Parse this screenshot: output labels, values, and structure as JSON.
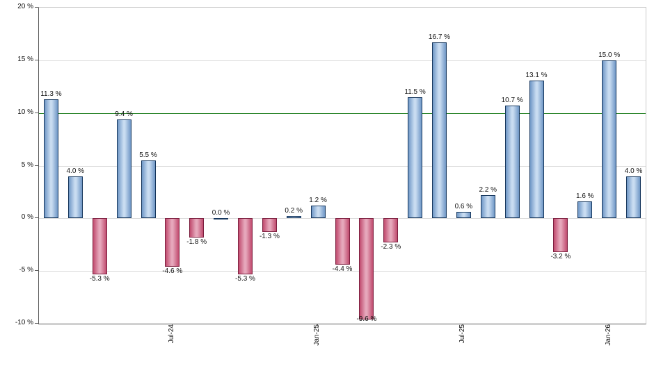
{
  "chart_data": {
    "type": "bar",
    "title": "",
    "xlabel": "",
    "ylabel": "",
    "ylim": [
      -10,
      20
    ],
    "grid": true,
    "legend": null,
    "yticks": [
      20,
      15,
      10,
      5,
      0,
      -5,
      -10
    ],
    "ytick_labels": [
      "20 %",
      "15 %",
      "10 %",
      "5 %",
      "0 %",
      "-5 %",
      "-10 %"
    ],
    "reference_line": {
      "value": 10,
      "color": "#1e7e1e"
    },
    "x_axis_labels": [
      {
        "label": "Jul-24",
        "index": 5
      },
      {
        "label": "Jan-25",
        "index": 11
      },
      {
        "label": "Jul-25",
        "index": 17
      },
      {
        "label": "Jan-26",
        "index": 23
      }
    ],
    "values": [
      11.3,
      4.0,
      -5.3,
      9.4,
      5.5,
      -4.6,
      -1.8,
      0.0,
      -5.3,
      -1.3,
      0.2,
      1.2,
      -4.4,
      -9.6,
      -2.3,
      11.5,
      16.7,
      0.6,
      2.2,
      10.7,
      13.1,
      -3.2,
      1.6,
      15.0,
      4.0
    ],
    "value_labels": [
      "11.3 %",
      "4.0 %",
      "-5.3 %",
      "9.4 %",
      "5.5 %",
      "-4.6 %",
      "-1.8 %",
      "0.0 %",
      "-5.3 %",
      "-1.3 %",
      "0.2 %",
      "1.2 %",
      "-4.4 %",
      "-9.6 %",
      "-2.3 %",
      "11.5 %",
      "16.7 %",
      "0.6 %",
      "2.2 %",
      "10.7 %",
      "13.1 %",
      "-3.2 %",
      "1.6 %",
      "15.0 %",
      "4.0 %"
    ],
    "colors": {
      "positive_bar_fill_edge": "#6f97c6",
      "positive_bar_fill_center": "#c9dcf1",
      "positive_bar_border": "#16365c",
      "negative_bar_fill_edge": "#c04a6e",
      "negative_bar_fill_center": "#e6a8bb",
      "negative_bar_border": "#7c1f3f",
      "reference_line": "#1e7e1e",
      "gridline": "#d9d9d9",
      "axis": "#555555",
      "label_text": "#111111"
    }
  }
}
